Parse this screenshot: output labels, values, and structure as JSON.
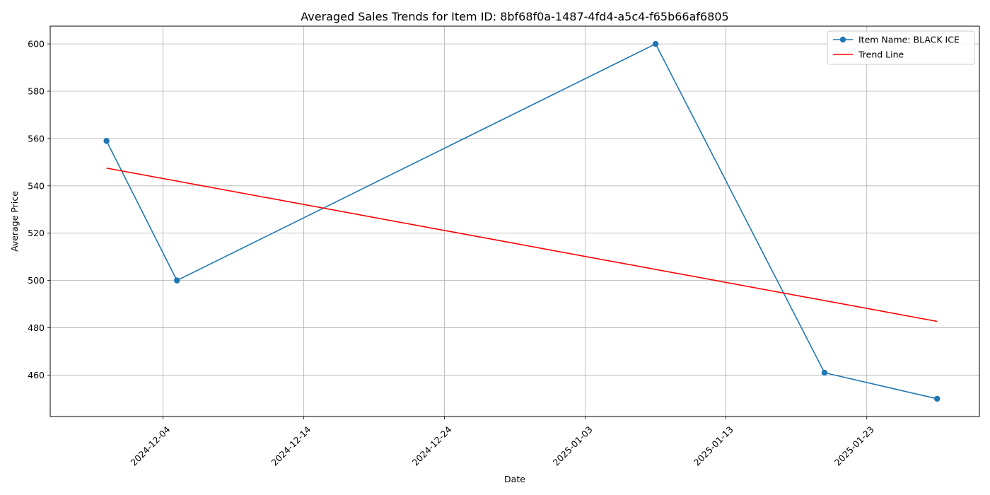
{
  "chart_data": {
    "type": "line",
    "title": "Averaged Sales Trends for Item ID: 8bf68f0a-1487-4fd4-a5c4-f65b66af6805",
    "xlabel": "Date",
    "ylabel": "Average Price",
    "grid": true,
    "legend_position": "top-right",
    "x_ticks": [
      "2024-12-04",
      "2024-12-14",
      "2024-12-24",
      "2025-01-03",
      "2025-01-13",
      "2025-01-23"
    ],
    "y_ticks": [
      460,
      480,
      500,
      520,
      540,
      560,
      580,
      600
    ],
    "xlim": [
      "2024-11-26",
      "2025-01-31"
    ],
    "ylim": [
      442.5,
      607.5
    ],
    "series": [
      {
        "name": "Item Name: BLACK ICE",
        "color": "#1f77b4",
        "marker": "circle",
        "points": [
          {
            "x": "2024-11-30",
            "y": 559
          },
          {
            "x": "2024-12-05",
            "y": 500
          },
          {
            "x": "2025-01-08",
            "y": 600
          },
          {
            "x": "2025-01-20",
            "y": 461
          },
          {
            "x": "2025-01-28",
            "y": 450
          }
        ]
      },
      {
        "name": "Trend Line",
        "color": "#ff0000",
        "marker": "none",
        "points": [
          {
            "x": "2024-11-30",
            "y": 547.5
          },
          {
            "x": "2025-01-28",
            "y": 482.7
          }
        ]
      }
    ]
  }
}
